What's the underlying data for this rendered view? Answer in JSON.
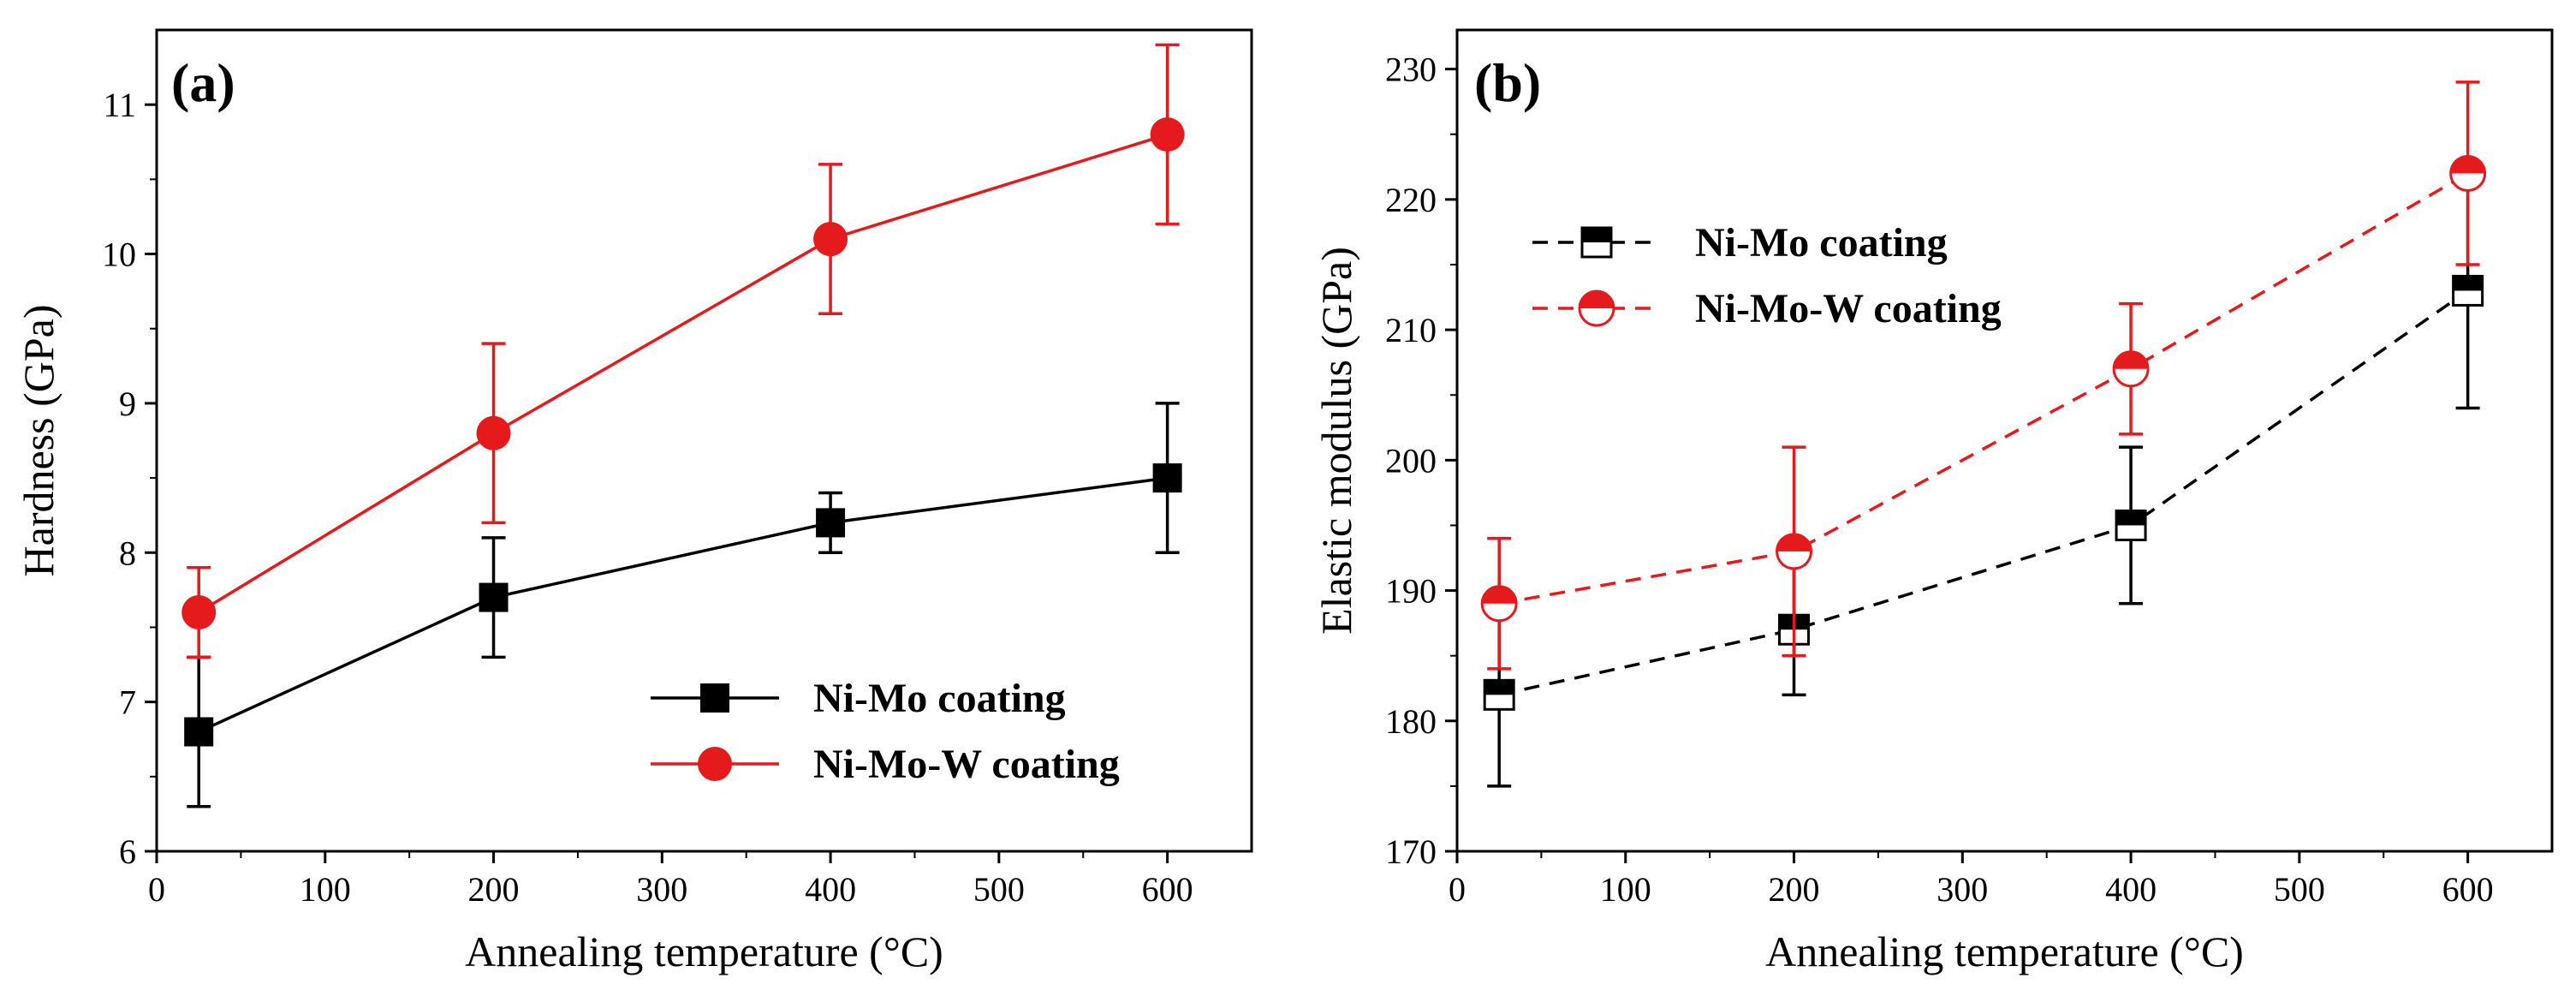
{
  "chart_data": [
    {
      "panel_label": "(a)",
      "type": "line",
      "title": "",
      "xlabel": "Annealing temperature (°C)",
      "ylabel": "Hardness (GPa)",
      "xlim": [
        0,
        650
      ],
      "ylim": [
        6,
        11.5
      ],
      "xticks": [
        0,
        100,
        200,
        300,
        400,
        500,
        600
      ],
      "yticks": [
        6,
        7,
        8,
        9,
        10,
        11
      ],
      "grid": false,
      "legend_position": "bottom-right",
      "x": [
        25,
        200,
        400,
        600
      ],
      "series": [
        {
          "name": "Ni-Mo coating",
          "color": "#000000",
          "marker": "square",
          "line_style": "solid",
          "values": [
            6.8,
            7.7,
            8.2,
            8.5
          ],
          "errors": [
            0.5,
            0.4,
            0.2,
            0.5
          ]
        },
        {
          "name": "Ni-Mo-W coating",
          "color": "#e41a1c",
          "marker": "circle",
          "line_style": "solid",
          "values": [
            7.6,
            8.8,
            10.1,
            10.8
          ],
          "errors": [
            0.3,
            0.6,
            0.5,
            0.6
          ]
        }
      ]
    },
    {
      "panel_label": "(b)",
      "type": "line",
      "title": "",
      "xlabel": "Annealing temperature (°C)",
      "ylabel": "Elastic modulus (GPa)",
      "xlim": [
        0,
        650
      ],
      "ylim": [
        170,
        233
      ],
      "xticks": [
        0,
        100,
        200,
        300,
        400,
        500,
        600
      ],
      "yticks": [
        170,
        180,
        190,
        200,
        210,
        220,
        230
      ],
      "grid": false,
      "legend_position": "top-left",
      "x": [
        25,
        200,
        400,
        600
      ],
      "series": [
        {
          "name": "Ni-Mo coating",
          "color": "#000000",
          "marker": "half-square",
          "line_style": "dashed",
          "values": [
            182,
            187,
            195,
            213
          ],
          "errors": [
            7,
            5,
            6,
            9
          ]
        },
        {
          "name": "Ni-Mo-W coating",
          "color": "#e41a1c",
          "marker": "half-circle",
          "line_style": "dashed",
          "values": [
            189,
            193,
            207,
            222
          ],
          "errors": [
            5,
            8,
            5,
            7
          ]
        }
      ]
    }
  ]
}
